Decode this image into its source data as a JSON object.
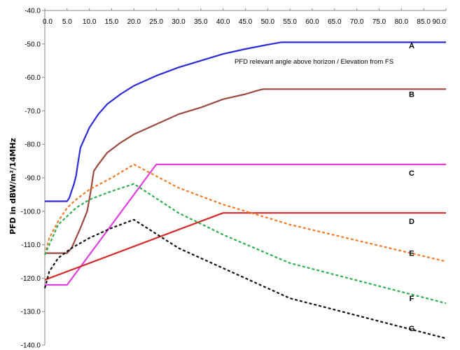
{
  "chart_data": {
    "type": "line",
    "title": "",
    "xlabel": "",
    "ylabel": "PFD in dBW/m²/14MHz",
    "annotation": "PFD relevant angle above horizon / Elevation from FS",
    "x_axis_position": "top",
    "xlim": [
      0,
      90
    ],
    "ylim": [
      -140,
      -40
    ],
    "x_ticks": [
      "0.0",
      "5.0",
      "10.0",
      "15.0",
      "20.0",
      "25.0",
      "30.0",
      "35.0",
      "40.0",
      "45.0",
      "50.0",
      "55.0",
      "60.0",
      "65.0",
      "70.0",
      "75.0",
      "80.0",
      "85.0",
      "90.0"
    ],
    "y_ticks": [
      "-40.0",
      "-50.0",
      "-60.0",
      "-70.0",
      "-80.0",
      "-90.0",
      "-100.0",
      "-110.0",
      "-120.0",
      "-130.0",
      "-140.0"
    ],
    "grid": false,
    "legend": "labels at right",
    "series": [
      {
        "name": "A",
        "color": "#2b2bd6",
        "dash": "solid",
        "points": [
          [
            0,
            -97
          ],
          [
            5,
            -97
          ],
          [
            5.5,
            -96
          ],
          [
            6,
            -94
          ],
          [
            6.5,
            -92
          ],
          [
            7,
            -89.5
          ],
          [
            7.5,
            -85
          ],
          [
            8,
            -81
          ],
          [
            9,
            -78
          ],
          [
            10,
            -75
          ],
          [
            12,
            -71
          ],
          [
            14,
            -68
          ],
          [
            17,
            -65
          ],
          [
            20,
            -62.5
          ],
          [
            25,
            -59.5
          ],
          [
            30,
            -57
          ],
          [
            35,
            -55
          ],
          [
            40,
            -53
          ],
          [
            45,
            -51.5
          ],
          [
            50,
            -50.2
          ],
          [
            53,
            -49.5
          ],
          [
            90,
            -49.5
          ]
        ]
      },
      {
        "name": "B",
        "color": "#9b4a3e",
        "dash": "solid",
        "points": [
          [
            0,
            -112.5
          ],
          [
            5,
            -112.5
          ],
          [
            6,
            -111
          ],
          [
            8,
            -105
          ],
          [
            9.5,
            -100
          ],
          [
            10.3,
            -94
          ],
          [
            11,
            -88
          ],
          [
            12,
            -86
          ],
          [
            14,
            -82.5
          ],
          [
            17,
            -79.5
          ],
          [
            20,
            -77
          ],
          [
            25,
            -74
          ],
          [
            30,
            -71
          ],
          [
            35,
            -69
          ],
          [
            40,
            -66.5
          ],
          [
            45,
            -65
          ],
          [
            48,
            -63.8
          ],
          [
            49,
            -63.5
          ],
          [
            90,
            -63.5
          ]
        ]
      },
      {
        "name": "C",
        "color": "#e040e0",
        "dash": "solid",
        "points": [
          [
            0,
            -122
          ],
          [
            5,
            -122
          ],
          [
            25,
            -86
          ],
          [
            90,
            -86
          ]
        ]
      },
      {
        "name": "D",
        "color": "#d42a2a",
        "dash": "solid",
        "points": [
          [
            0,
            -120.5
          ],
          [
            40,
            -100.5
          ],
          [
            90,
            -100.5
          ]
        ]
      },
      {
        "name": "E",
        "color": "#f07a2a",
        "dash": "dashed",
        "points": [
          [
            0,
            -113
          ],
          [
            1,
            -108
          ],
          [
            3,
            -103
          ],
          [
            5,
            -99
          ],
          [
            7,
            -96.5
          ],
          [
            10,
            -93.5
          ],
          [
            15,
            -90
          ],
          [
            20,
            -86
          ],
          [
            30,
            -93
          ],
          [
            40,
            -98
          ],
          [
            55,
            -104
          ],
          [
            90,
            -115
          ]
        ]
      },
      {
        "name": "F",
        "color": "#2eae4e",
        "dash": "dashed",
        "points": [
          [
            0,
            -113
          ],
          [
            1,
            -110
          ],
          [
            3,
            -104
          ],
          [
            5,
            -101.5
          ],
          [
            7,
            -99
          ],
          [
            10,
            -96.5
          ],
          [
            15,
            -94
          ],
          [
            20,
            -91.8
          ],
          [
            30,
            -100.5
          ],
          [
            40,
            -107
          ],
          [
            55,
            -115.5
          ],
          [
            90,
            -127.5
          ]
        ]
      },
      {
        "name": "G",
        "color": "#111111",
        "dash": "dashed",
        "points": [
          [
            0,
            -123
          ],
          [
            1,
            -118
          ],
          [
            3,
            -114
          ],
          [
            6,
            -111
          ],
          [
            10,
            -108
          ],
          [
            15,
            -105
          ],
          [
            20,
            -102.5
          ],
          [
            30,
            -111
          ],
          [
            40,
            -117
          ],
          [
            55,
            -126
          ],
          [
            90,
            -138
          ]
        ]
      }
    ]
  }
}
